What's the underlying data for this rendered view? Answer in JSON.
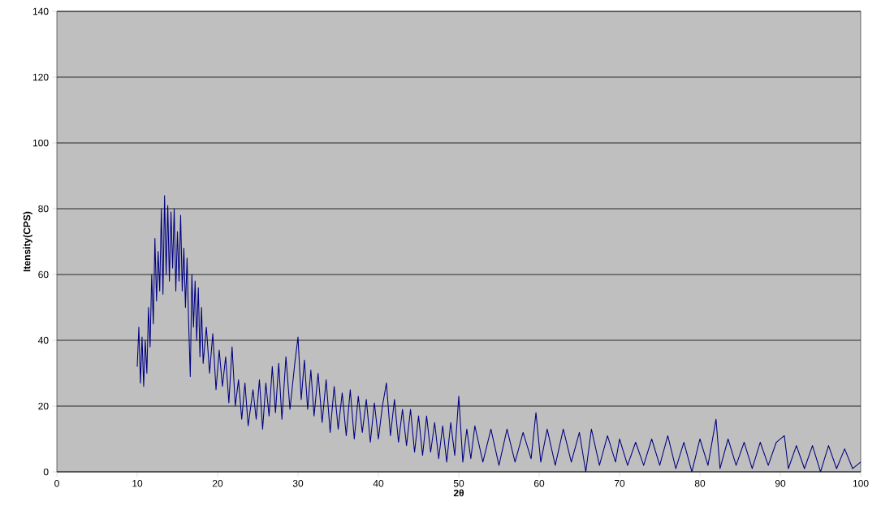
{
  "chart_data": {
    "type": "line",
    "xlabel": "2θ",
    "ylabel": "Itensity(CPS)",
    "xlim": [
      0,
      100
    ],
    "ylim": [
      0,
      140
    ],
    "xticks": [
      0,
      10,
      20,
      30,
      40,
      50,
      60,
      70,
      80,
      90,
      100
    ],
    "yticks": [
      0,
      20,
      40,
      60,
      80,
      100,
      120,
      140
    ],
    "grid": "y",
    "marker": "none",
    "line_style": "solid",
    "series": [
      {
        "color": "#000080",
        "x": [
          10.0,
          10.2,
          10.4,
          10.6,
          10.8,
          11.0,
          11.2,
          11.4,
          11.6,
          11.8,
          12.0,
          12.2,
          12.4,
          12.6,
          12.8,
          13.0,
          13.2,
          13.4,
          13.6,
          13.8,
          14.0,
          14.2,
          14.4,
          14.6,
          14.8,
          15.0,
          15.2,
          15.4,
          15.6,
          15.8,
          16.0,
          16.2,
          16.4,
          16.6,
          16.8,
          17.0,
          17.2,
          17.4,
          17.6,
          17.8,
          18.0,
          18.2,
          18.6,
          19.0,
          19.4,
          19.8,
          20.2,
          20.6,
          21.0,
          21.4,
          21.8,
          22.2,
          22.6,
          23.0,
          23.4,
          23.8,
          24.4,
          24.8,
          25.2,
          25.6,
          26.0,
          26.4,
          26.8,
          27.2,
          27.6,
          28.0,
          28.5,
          29.0,
          29.6,
          30.0,
          30.4,
          30.8,
          31.2,
          31.6,
          32.0,
          32.5,
          33.0,
          33.5,
          34.0,
          34.5,
          35.0,
          35.5,
          36.0,
          36.5,
          37.0,
          37.5,
          38.0,
          38.5,
          39.0,
          39.5,
          40.0,
          40.5,
          41.0,
          41.5,
          42.0,
          42.5,
          43.0,
          43.5,
          44.0,
          44.5,
          45.0,
          45.5,
          46.0,
          46.5,
          47.0,
          47.5,
          48.0,
          48.5,
          49.0,
          49.5,
          50.0,
          50.5,
          51.0,
          51.5,
          52.0,
          53.0,
          54.0,
          55.0,
          56.0,
          57.0,
          58.0,
          59.0,
          59.6,
          60.2,
          61.0,
          62.0,
          63.0,
          64.0,
          65.0,
          65.8,
          66.5,
          67.5,
          68.5,
          69.5,
          70.0,
          71.0,
          72.0,
          73.0,
          74.0,
          75.0,
          76.0,
          77.0,
          78.0,
          79.0,
          80.0,
          81.0,
          82.0,
          82.5,
          83.5,
          84.5,
          85.5,
          86.5,
          87.5,
          88.5,
          89.5,
          90.5,
          91.0,
          92.0,
          93.0,
          94.0,
          95.0,
          96.0,
          97.0,
          98.0,
          99.0,
          100.0
        ],
        "values": [
          32,
          44,
          27,
          41,
          26,
          40,
          30,
          50,
          38,
          60,
          45,
          71,
          52,
          67,
          55,
          80,
          54,
          84,
          60,
          81,
          58,
          79,
          62,
          80,
          55,
          73,
          58,
          78,
          55,
          68,
          50,
          65,
          45,
          29,
          60,
          44,
          58,
          40,
          56,
          35,
          50,
          33,
          44,
          30,
          42,
          25,
          37,
          26,
          35,
          21,
          38,
          20,
          28,
          16,
          27,
          14,
          25,
          16,
          28,
          13,
          27,
          17,
          32,
          18,
          33,
          16,
          35,
          19,
          33,
          41,
          22,
          34,
          19,
          31,
          17,
          30,
          15,
          28,
          12,
          26,
          13,
          24,
          11,
          25,
          10,
          23,
          12,
          22,
          9,
          21,
          10,
          20,
          27,
          11,
          22,
          9,
          19,
          8,
          19,
          6,
          17,
          5,
          17,
          6,
          15,
          4,
          14,
          3,
          15,
          5,
          23,
          3,
          13,
          4,
          14,
          3,
          13,
          2,
          13,
          3,
          12,
          4,
          18,
          3,
          13,
          2,
          13,
          3,
          12,
          0,
          13,
          2,
          11,
          3,
          10,
          2,
          9,
          2,
          10,
          2,
          11,
          1,
          9,
          0,
          10,
          2,
          16,
          1,
          10,
          2,
          9,
          1,
          9,
          2,
          9,
          11,
          1,
          8,
          1,
          8,
          0,
          8,
          1,
          7,
          1,
          3
        ]
      }
    ]
  }
}
